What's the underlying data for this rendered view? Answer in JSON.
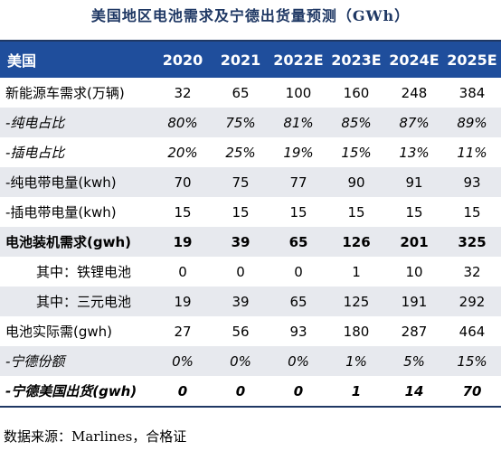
{
  "title": "美国地区电池需求及宁德出货量预测（GWh）",
  "table": {
    "header": [
      "美国",
      "2020",
      "2021",
      "2022E",
      "2023E",
      "2024E",
      "2025E"
    ],
    "rows": [
      [
        "新能源车需求(万辆)",
        "32",
        "65",
        "100",
        "160",
        "248",
        "384"
      ],
      [
        "-纯电占比",
        "80%",
        "75%",
        "81%",
        "85%",
        "87%",
        "89%"
      ],
      [
        "-插电占比",
        "20%",
        "25%",
        "19%",
        "15%",
        "13%",
        "11%"
      ],
      [
        "-纯电带电量(kwh)",
        "70",
        "75",
        "77",
        "90",
        "91",
        "93"
      ],
      [
        "-插电带电量(kwh)",
        "15",
        "15",
        "15",
        "15",
        "15",
        "15"
      ],
      [
        "电池装机需求(gwh)",
        "19",
        "39",
        "65",
        "126",
        "201",
        "325"
      ],
      [
        "其中：铁锂电池",
        "0",
        "0",
        "0",
        "1",
        "10",
        "32"
      ],
      [
        "其中：三元电池",
        "19",
        "39",
        "65",
        "125",
        "191",
        "292"
      ],
      [
        "电池实际需(gwh)",
        "27",
        "56",
        "93",
        "180",
        "287",
        "464"
      ],
      [
        "-宁德份额",
        "0%",
        "0%",
        "0%",
        "1%",
        "5%",
        "15%"
      ],
      [
        "-宁德美国出货(gwh)",
        "0",
        "0",
        "0",
        "1",
        "14",
        "70"
      ]
    ]
  },
  "source": "数据来源：Marlines，合格证"
}
